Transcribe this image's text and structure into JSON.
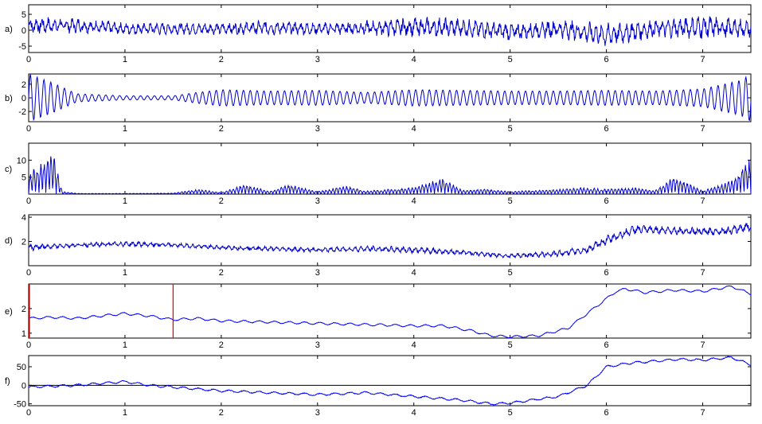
{
  "chart_data": [
    {
      "type": "line",
      "panel_label": "a)",
      "xlim": [
        0,
        7.5
      ],
      "ylim": [
        -7,
        8
      ],
      "xticks": [
        "0",
        "1",
        "2",
        "3",
        "4",
        "5",
        "6",
        "7"
      ],
      "yticks": [
        {
          "v": 5,
          "label": "5"
        },
        {
          "v": 0,
          "label": "0"
        },
        {
          "v": -5,
          "label": "-5"
        }
      ],
      "series": [
        {
          "color": "#0000cc",
          "kind": "signal",
          "x": [
            0,
            0.5,
            1,
            1.5,
            2,
            2.5,
            3,
            3.5,
            4,
            4.5,
            5,
            5.5,
            6,
            6.5,
            7,
            7.5
          ],
          "center": [
            1.5,
            1.5,
            0.5,
            0.5,
            0.5,
            0.8,
            0.5,
            0.7,
            1,
            0.8,
            -0.5,
            0.5,
            -1.5,
            0.5,
            1,
            0.5
          ],
          "amplitude": [
            3,
            2.5,
            2,
            2,
            2,
            2.5,
            2,
            2.5,
            3.5,
            3,
            3,
            3,
            4,
            3,
            4,
            3
          ]
        }
      ]
    },
    {
      "type": "line",
      "panel_label": "b)",
      "xlim": [
        0,
        7.5
      ],
      "ylim": [
        -3.5,
        3.5
      ],
      "xticks": [
        "0",
        "1",
        "2",
        "3",
        "4",
        "5",
        "6",
        "7"
      ],
      "yticks": [
        {
          "v": 2,
          "label": "2"
        },
        {
          "v": 0,
          "label": "0"
        },
        {
          "v": -2,
          "label": "-2"
        }
      ],
      "series": [
        {
          "color": "#0000cc",
          "kind": "oscillation",
          "x": [
            0,
            0.25,
            0.5,
            1,
            1.5,
            1.75,
            2,
            2.5,
            3,
            3.5,
            4,
            4.5,
            5,
            5.5,
            6,
            6.5,
            7,
            7.4,
            7.5
          ],
          "center": [
            0,
            0,
            0,
            0,
            0,
            0,
            0,
            0,
            0,
            0,
            0,
            0,
            0,
            0,
            0,
            0,
            0,
            0,
            0
          ],
          "amplitude": [
            3.5,
            2.2,
            0.6,
            0.3,
            0.3,
            0.8,
            1.2,
            1,
            1.1,
            0.8,
            1.2,
            1.1,
            1,
            1,
            1.1,
            1,
            1.3,
            2.6,
            3.5
          ]
        }
      ]
    },
    {
      "type": "line",
      "panel_label": "c)",
      "xlim": [
        0,
        7.5
      ],
      "ylim": [
        0,
        15
      ],
      "xticks": [
        "0",
        "1",
        "2",
        "3",
        "4",
        "5",
        "6",
        "7"
      ],
      "yticks": [
        {
          "v": 10,
          "label": "10"
        },
        {
          "v": 5,
          "label": "5"
        }
      ],
      "series": [
        {
          "color": "#0000cc",
          "kind": "envelope",
          "x": [
            0,
            0.25,
            0.35,
            0.5,
            1,
            1.5,
            1.75,
            2,
            2.25,
            2.5,
            2.7,
            3,
            3.3,
            3.5,
            4,
            4.3,
            4.5,
            4.75,
            5,
            5.5,
            5.75,
            6,
            6.3,
            6.5,
            6.7,
            7,
            7.3,
            7.5
          ],
          "center": [
            0,
            0,
            0,
            0,
            0,
            0,
            0,
            0,
            0,
            0,
            0,
            0,
            0,
            0,
            0,
            0,
            0,
            0,
            0,
            0,
            0,
            0,
            0,
            0,
            0,
            0,
            0,
            0
          ],
          "amplitude": [
            6,
            13,
            0.8,
            0.2,
            0.2,
            0.3,
            1.5,
            0.5,
            3,
            0.8,
            3,
            0.8,
            2.5,
            1,
            2,
            5,
            1.2,
            1.5,
            0.8,
            1.5,
            2,
            1.5,
            2,
            1,
            5.5,
            1,
            4,
            11
          ]
        }
      ]
    },
    {
      "type": "line",
      "panel_label": "d)",
      "xlim": [
        0,
        7.5
      ],
      "ylim": [
        0,
        4.2
      ],
      "xticks": [
        "0",
        "1",
        "2",
        "3",
        "4",
        "5",
        "6",
        "7"
      ],
      "yticks": [
        {
          "v": 4,
          "label": "4"
        },
        {
          "v": 2,
          "label": "2"
        }
      ],
      "series": [
        {
          "color": "#0000cc",
          "kind": "signal",
          "x": [
            0,
            0.5,
            1,
            1.5,
            2,
            2.5,
            3,
            3.5,
            4,
            4.5,
            5,
            5.5,
            5.8,
            6,
            6.3,
            6.7,
            7,
            7.3,
            7.5
          ],
          "center": [
            1.5,
            1.7,
            1.8,
            1.7,
            1.5,
            1.4,
            1.3,
            1.4,
            1.3,
            1.1,
            0.8,
            1,
            1.3,
            2.1,
            3,
            2.9,
            2.8,
            2.9,
            3.3
          ],
          "amplitude": [
            0.3,
            0.2,
            0.25,
            0.2,
            0.2,
            0.2,
            0.2,
            0.25,
            0.3,
            0.25,
            0.2,
            0.3,
            0.35,
            0.4,
            0.4,
            0.35,
            0.35,
            0.35,
            0.45
          ]
        }
      ]
    },
    {
      "type": "line",
      "panel_label": "e)",
      "xlim": [
        0,
        7.5
      ],
      "ylim": [
        0.8,
        3
      ],
      "xticks": [
        "0",
        "1",
        "2",
        "3",
        "4",
        "5",
        "6",
        "7"
      ],
      "yticks": [
        {
          "v": 2,
          "label": "2"
        },
        {
          "v": 1,
          "label": "1"
        }
      ],
      "markers": [
        {
          "x": 0,
          "color": "#ff0000"
        },
        {
          "x": 1.5,
          "color": "#ff0000"
        }
      ],
      "series": [
        {
          "color": "#0000ff",
          "kind": "smooth",
          "x": [
            0,
            0.25,
            0.5,
            0.75,
            1,
            1.25,
            1.5,
            1.75,
            2,
            2.5,
            3,
            3.5,
            4,
            4.3,
            4.6,
            4.8,
            5,
            5.3,
            5.6,
            5.8,
            6,
            6.1,
            6.2,
            6.4,
            6.7,
            7,
            7.3,
            7.5
          ],
          "center": [
            1.6,
            1.65,
            1.6,
            1.7,
            1.8,
            1.7,
            1.55,
            1.6,
            1.5,
            1.45,
            1.4,
            1.35,
            1.3,
            1.3,
            1.1,
            0.9,
            0.85,
            0.9,
            1.2,
            1.8,
            2.4,
            2.7,
            2.8,
            2.65,
            2.75,
            2.7,
            2.9,
            2.6
          ],
          "amplitude": [
            0.01,
            0.01,
            0.01,
            0.01,
            0.01,
            0.01,
            0.01,
            0.01,
            0.01,
            0.01,
            0.01,
            0.01,
            0.01,
            0.01,
            0.01,
            0.01,
            0.01,
            0.01,
            0.01,
            0.01,
            0.01,
            0.01,
            0.01,
            0.01,
            0.01,
            0.01,
            0.01,
            0.01
          ]
        }
      ]
    },
    {
      "type": "line",
      "panel_label": "f)",
      "xlim": [
        0,
        7.5
      ],
      "ylim": [
        -55,
        80
      ],
      "xticks": [
        "0",
        "1",
        "2",
        "3",
        "4",
        "5",
        "6",
        "7"
      ],
      "yticks": [
        {
          "v": 50,
          "label": "50"
        },
        {
          "v": 0,
          "label": "0"
        },
        {
          "v": -50,
          "label": "-50"
        }
      ],
      "zero_line": true,
      "series": [
        {
          "color": "#0000ff",
          "kind": "smooth",
          "x": [
            0,
            0.5,
            0.75,
            1,
            1.25,
            1.5,
            2,
            2.5,
            3,
            3.5,
            4,
            4.5,
            4.8,
            5,
            5.5,
            5.8,
            6,
            6.25,
            6.5,
            6.75,
            7,
            7.3,
            7.5
          ],
          "center": [
            -5,
            0,
            5,
            10,
            0,
            -5,
            -15,
            -20,
            -25,
            -20,
            -30,
            -40,
            -50,
            -48,
            -30,
            0,
            50,
            60,
            65,
            70,
            68,
            75,
            55
          ],
          "amplitude": [
            1,
            1,
            1,
            1,
            1,
            1,
            1,
            1,
            1,
            1,
            1,
            1,
            1,
            1,
            1,
            1,
            1,
            1,
            1,
            1,
            1,
            1,
            1
          ]
        }
      ]
    }
  ]
}
